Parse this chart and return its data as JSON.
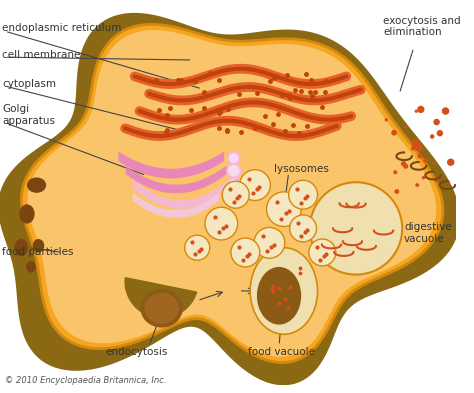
{
  "title": "",
  "copyright": "© 2010 Encyclopaedia Britannica, Inc.",
  "labels": {
    "endoplasmic_reticulum": "endoplasmic reticulum",
    "cell_membrane": "cell membrane",
    "cytoplasm": "cytoplasm",
    "golgi_apparatus": "Golgi\napparatus",
    "lysosomes": "lysosomes",
    "exocytosis": "exocytosis and\nelimination",
    "digestive_vacuole": "digestive\nvacuole",
    "food_particles": "food particles",
    "endocytosis": "endocytosis",
    "food_vacuole": "food vacuole"
  },
  "colors": {
    "background": "#ffffff",
    "cell_outer": "#8B6914",
    "cell_inner": "#F5A623",
    "cell_cytoplasm_light": "#FAC46A",
    "cell_membrane_line": "#D4890A",
    "er_orange": "#E8612C",
    "er_dark": "#C0440A",
    "golgi_pink": "#E87DC8",
    "golgi_light": "#F4B8E0",
    "lysosome_bg": "#F5E8C0",
    "lysosome_dot": "#D4501A",
    "vacuole_bg": "#F0E0B0",
    "vacuole_content": "#8B5A14",
    "food_particle": "#7A4510",
    "exo_dot": "#D4501A",
    "label_text": "#333333",
    "arrow_color": "#444444"
  },
  "figsize": [
    4.74,
    3.93
  ],
  "dpi": 100
}
